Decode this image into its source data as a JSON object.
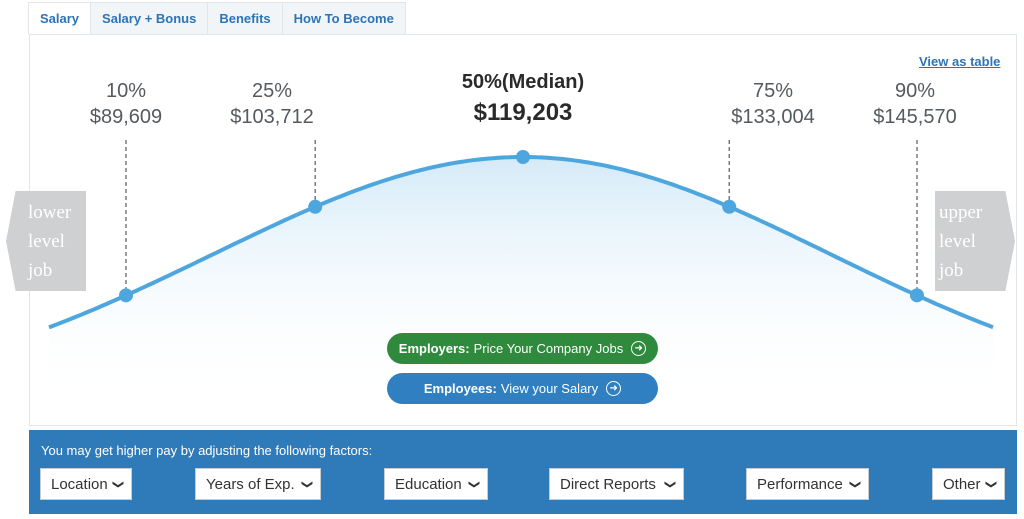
{
  "tabs": [
    {
      "label": "Salary"
    },
    {
      "label": "Salary + Bonus"
    },
    {
      "label": "Benefits"
    },
    {
      "label": "How To Become"
    }
  ],
  "view_as_table": "View as table",
  "chart_data": {
    "type": "line",
    "percentiles": [
      {
        "pct": "10%",
        "value": 89609,
        "label": "$89,609"
      },
      {
        "pct": "25%",
        "value": 103712,
        "label": "$103,712"
      },
      {
        "pct": "50%(Median)",
        "value": 119203,
        "label": "$119,203"
      },
      {
        "pct": "75%",
        "value": 133004,
        "label": "$133,004"
      },
      {
        "pct": "90%",
        "value": 145570,
        "label": "$145,570"
      }
    ],
    "curve_color": "#4da6dd"
  },
  "side_nav": {
    "lower": [
      "lower",
      "level",
      "job"
    ],
    "upper": [
      "upper",
      "level",
      "job"
    ]
  },
  "cta": {
    "employers_bold": "Employers:",
    "employers_text": "Price Your Company Jobs",
    "employees_bold": "Employees:",
    "employees_text": "View your Salary",
    "arrow_icon": "arrow-right-circle-icon"
  },
  "factors": {
    "intro": "You may get higher pay by adjusting the following factors:",
    "selects": [
      {
        "label": "Location"
      },
      {
        "label": "Years of Exp."
      },
      {
        "label": "Education"
      },
      {
        "label": "Direct Reports"
      },
      {
        "label": "Performance"
      },
      {
        "label": "Other"
      }
    ]
  },
  "colors": {
    "accent": "#2b74b8",
    "factors_bg": "#2f7ab9",
    "employers_bg": "#2f8a3d",
    "employees_bg": "#2f7fc1"
  }
}
